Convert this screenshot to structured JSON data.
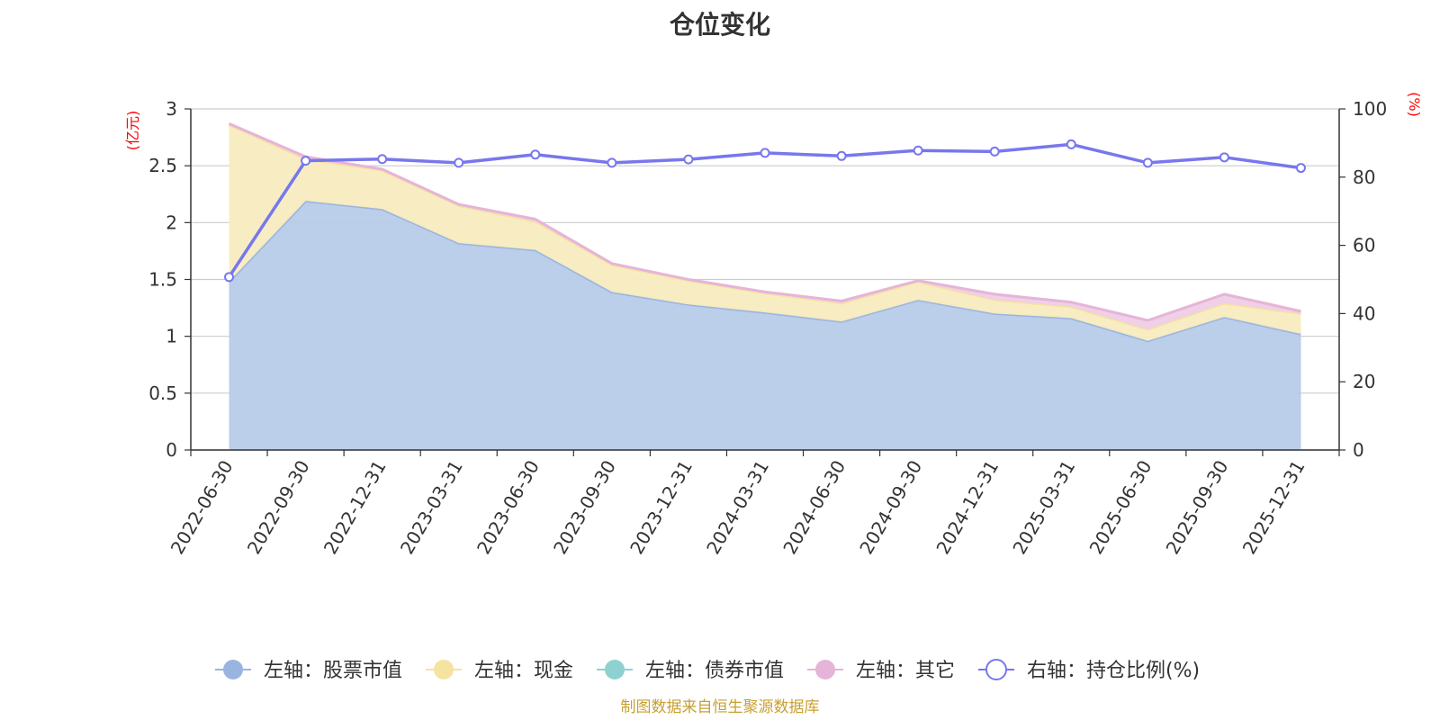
{
  "chart_data": {
    "type": "area",
    "title": "仓位变化",
    "left_axis": {
      "unit_label": "(亿元)",
      "ylim": [
        0,
        3
      ],
      "ticks": [
        0,
        0.5,
        1,
        1.5,
        2,
        2.5,
        3
      ],
      "tick_labels": [
        "0",
        "0.5",
        "1",
        "1.5",
        "2",
        "2.5",
        "3"
      ]
    },
    "right_axis": {
      "unit_label": "(%)",
      "ylim": [
        0,
        100
      ],
      "ticks": [
        0,
        20,
        40,
        60,
        80,
        100
      ],
      "tick_labels": [
        "0",
        "20",
        "40",
        "60",
        "80",
        "100"
      ]
    },
    "categories": [
      "2022-06-30",
      "2022-09-30",
      "2022-12-31",
      "2023-03-31",
      "2023-06-30",
      "2023-09-30",
      "2023-12-31",
      "2024-03-31",
      "2024-06-30",
      "2024-09-30",
      "2024-12-31",
      "2025-03-31",
      "2025-06-30",
      "2025-09-30",
      "2025-12-31"
    ],
    "series": [
      {
        "name": "左轴：股票市值",
        "axis": "left",
        "stacked": true,
        "color": "#9ab4e0",
        "fill": "#b7cbe9",
        "values": [
          1.48,
          2.19,
          2.12,
          1.82,
          1.76,
          1.39,
          1.28,
          1.21,
          1.13,
          1.32,
          1.2,
          1.16,
          0.96,
          1.17,
          1.02
        ]
      },
      {
        "name": "左轴：现金",
        "axis": "left",
        "stacked": true,
        "color": "#f5e3a0",
        "fill": "#f8ecbf",
        "values": [
          1.38,
          0.37,
          0.34,
          0.33,
          0.25,
          0.24,
          0.21,
          0.17,
          0.16,
          0.16,
          0.12,
          0.1,
          0.1,
          0.12,
          0.18
        ]
      },
      {
        "name": "左轴：债券市值",
        "axis": "left",
        "stacked": true,
        "color": "#8ed1d1",
        "fill": "#bfe5e5",
        "values": [
          0,
          0,
          0,
          0,
          0,
          0,
          0,
          0,
          0,
          0,
          0,
          0,
          0,
          0,
          0
        ]
      },
      {
        "name": "左轴：其它",
        "axis": "left",
        "stacked": true,
        "color": "#e6b4d8",
        "fill": "#efcde6",
        "values": [
          0.01,
          0.02,
          0.01,
          0.01,
          0.02,
          0.01,
          0.01,
          0.01,
          0.02,
          0.01,
          0.05,
          0.04,
          0.08,
          0.08,
          0.02
        ]
      },
      {
        "name": "右轴：持仓比例(%)",
        "axis": "right",
        "stacked": false,
        "color": "#7777ee",
        "values": [
          50.7,
          84.8,
          85.3,
          84.2,
          86.6,
          84.2,
          85.2,
          87.1,
          86.2,
          87.8,
          87.5,
          89.6,
          84.2,
          85.8,
          82.7
        ]
      }
    ]
  },
  "legend": [
    {
      "label": "左轴：股票市值",
      "marker": "filled-circle",
      "color": "#9ab4e0"
    },
    {
      "label": "左轴：现金",
      "marker": "filled-circle",
      "color": "#f5e3a0"
    },
    {
      "label": "左轴：债券市值",
      "marker": "filled-circle",
      "color": "#8ed1d1"
    },
    {
      "label": "左轴：其它",
      "marker": "filled-circle",
      "color": "#e6b4d8"
    },
    {
      "label": "右轴：持仓比例(%)",
      "marker": "hollow-circle",
      "color": "#7777ee"
    }
  ],
  "source_note": "制图数据来自恒生聚源数据库"
}
